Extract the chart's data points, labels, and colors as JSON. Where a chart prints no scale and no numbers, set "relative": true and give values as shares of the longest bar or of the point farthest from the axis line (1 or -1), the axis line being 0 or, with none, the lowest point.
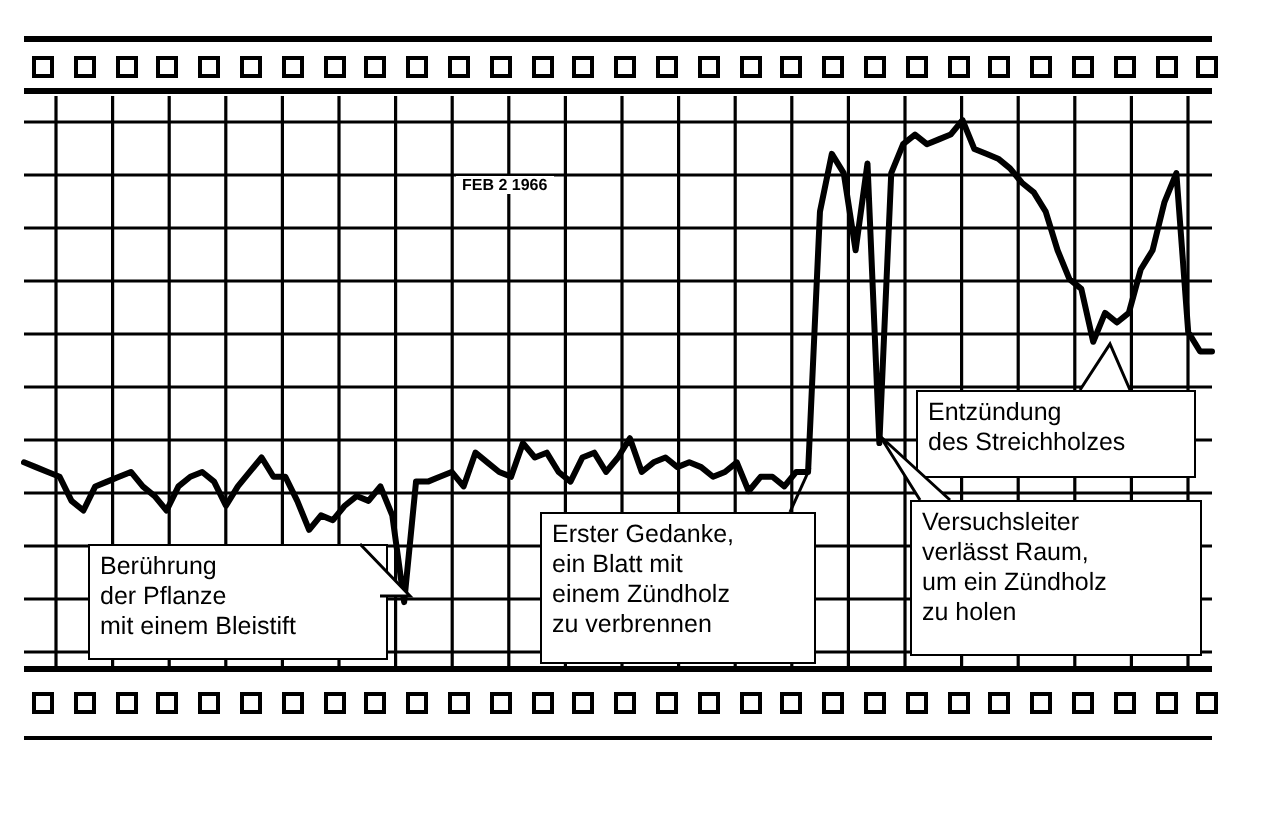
{
  "chart_data": {
    "type": "line",
    "relative": true,
    "grid": true,
    "legend": false,
    "tick_labels": false,
    "marker": "none",
    "line_style": "solid",
    "categories": [
      null,
      null,
      null,
      null,
      null,
      null,
      null,
      null,
      null,
      null,
      null,
      null,
      null,
      null,
      null,
      null,
      null,
      null,
      null,
      null,
      null,
      null,
      null,
      null,
      null,
      null,
      null,
      null,
      null,
      null,
      null,
      null,
      null,
      null,
      null,
      null,
      null,
      null,
      null,
      null,
      null,
      null,
      null,
      null,
      null,
      null,
      null,
      null,
      null,
      null,
      null,
      null,
      null,
      null,
      null,
      null,
      null,
      null,
      null,
      null,
      null,
      null,
      null,
      null,
      null,
      null,
      null,
      null,
      null,
      null,
      null,
      null,
      null,
      null,
      null,
      null,
      null,
      null,
      null,
      null,
      null,
      null,
      null,
      null,
      null,
      null,
      null,
      null,
      null,
      null,
      null,
      null,
      null,
      null,
      null,
      null,
      null,
      null,
      null,
      null,
      null
    ],
    "series": [
      {
        "color": "#000000",
        "values": [
          0.29,
          0.28,
          0.27,
          0.26,
          0.21,
          0.19,
          0.24,
          0.25,
          0.26,
          0.27,
          0.24,
          0.22,
          0.19,
          0.24,
          0.26,
          0.27,
          0.25,
          0.2,
          0.24,
          0.27,
          0.3,
          0.26,
          0.26,
          0.21,
          0.15,
          0.18,
          0.17,
          0.2,
          0.22,
          0.21,
          0.24,
          0.18,
          0,
          0.25,
          0.25,
          0.26,
          0.27,
          0.24,
          0.31,
          0.29,
          0.27,
          0.26,
          0.33,
          0.3,
          0.31,
          0.27,
          0.25,
          0.3,
          0.31,
          0.27,
          0.3,
          0.34,
          0.27,
          0.29,
          0.3,
          0.28,
          0.29,
          0.28,
          0.26,
          0.27,
          0.29,
          0.23,
          0.26,
          0.26,
          0.24,
          0.27,
          0.27,
          0.81,
          0.93,
          0.89,
          0.73,
          0.91,
          0.33,
          0.89,
          0.95,
          0.97,
          0.95,
          0.96,
          0.97,
          1,
          0.94,
          0.93,
          0.92,
          0.9,
          0.87,
          0.85,
          0.81,
          0.73,
          0.67,
          0.65,
          0.54,
          0.6,
          0.58,
          0.6,
          0.69,
          0.73,
          0.83,
          0.89,
          0.56,
          0.52,
          0.52
        ]
      }
    ],
    "annotations": [
      "FEB 2 1966",
      "Berührung\nder Pflanze\nmit einem Bleistift",
      "Erster Gedanke,\nein Blatt mit\neinem Zündholz\nzu verbrennen",
      "Entzündung\ndes Streichholzes",
      "Versuchsleiter\nverlässt Raum,\num ein Zündholz\nzu holen"
    ]
  }
}
